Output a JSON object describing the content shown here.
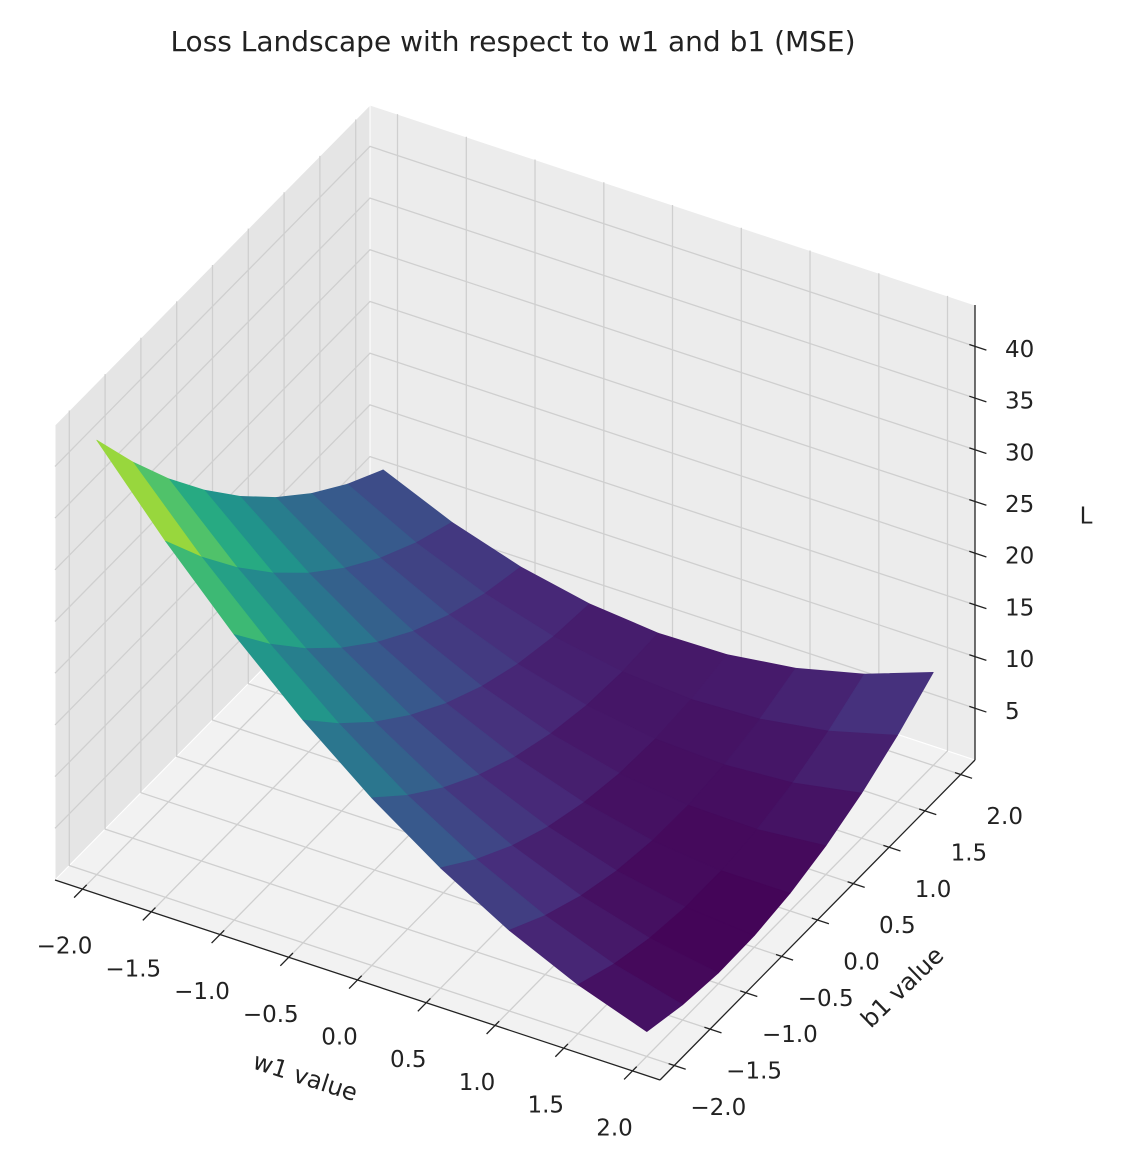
{
  "chart_data": {
    "type": "surface",
    "title": "Loss Landscape with respect to w1 and b1 (MSE)",
    "x_label": "w1 value",
    "y_label": "b1 value",
    "z_label": "L",
    "colormap": "viridis",
    "x": [
      -2,
      -1.5,
      -1,
      -0.5,
      0,
      0.5,
      1,
      1.5,
      2
    ],
    "y": [
      -2,
      -1.5,
      -1,
      -0.5,
      0,
      0.5,
      1,
      1.5,
      2
    ],
    "z": [
      [
        42,
        36.38,
        31.25,
        26.63,
        22.5,
        18.88,
        15.75,
        13.13,
        11
      ],
      [
        34.43,
        29.39,
        24.85,
        20.81,
        17.28,
        14.24,
        11.7,
        9.66,
        8.13
      ],
      [
        27.6,
        23.15,
        19.2,
        15.75,
        12.8,
        10.35,
        8.4,
        6.95,
        6
      ],
      [
        21.53,
        17.66,
        14.3,
        11.44,
        9.08,
        7.21,
        5.85,
        4.99,
        4.63
      ],
      [
        16.2,
        12.93,
        10.15,
        7.88,
        6.1,
        4.83,
        4.05,
        3.78,
        4
      ],
      [
        11.63,
        8.94,
        6.75,
        5.06,
        3.88,
        3.19,
        3,
        3.31,
        4.13
      ],
      [
        7.8,
        5.7,
        4.1,
        3,
        2.4,
        2.3,
        2.7,
        3.6,
        5
      ],
      [
        4.73,
        3.21,
        2.2,
        1.69,
        1.68,
        2.16,
        3.15,
        4.64,
        6.63
      ],
      [
        2.4,
        1.48,
        1.05,
        1.13,
        1.7,
        2.78,
        4.35,
        6.43,
        9
      ]
    ],
    "xlim": [
      -2.2,
      2.2
    ],
    "ylim": [
      -2.2,
      2.2
    ],
    "zlim": [
      0,
      44
    ],
    "xticks": [
      {
        "value": -2,
        "label": "−2.0"
      },
      {
        "value": -1.5,
        "label": "−1.5"
      },
      {
        "value": -1,
        "label": "−1.0"
      },
      {
        "value": -0.5,
        "label": "−0.5"
      },
      {
        "value": 0,
        "label": "0.0"
      },
      {
        "value": 0.5,
        "label": "0.5"
      },
      {
        "value": 1,
        "label": "1.0"
      },
      {
        "value": 1.5,
        "label": "1.5"
      },
      {
        "value": 2,
        "label": "2.0"
      }
    ],
    "yticks": [
      {
        "value": -2,
        "label": "−2.0"
      },
      {
        "value": -1.5,
        "label": "−1.5"
      },
      {
        "value": -1,
        "label": "−1.0"
      },
      {
        "value": -0.5,
        "label": "−0.5"
      },
      {
        "value": 0,
        "label": "0.0"
      },
      {
        "value": 0.5,
        "label": "0.5"
      },
      {
        "value": 1,
        "label": "1.0"
      },
      {
        "value": 1.5,
        "label": "1.5"
      },
      {
        "value": 2,
        "label": "2.0"
      }
    ],
    "zticks": [
      5,
      10,
      15,
      20,
      25,
      30,
      35,
      40
    ],
    "grid": true
  }
}
